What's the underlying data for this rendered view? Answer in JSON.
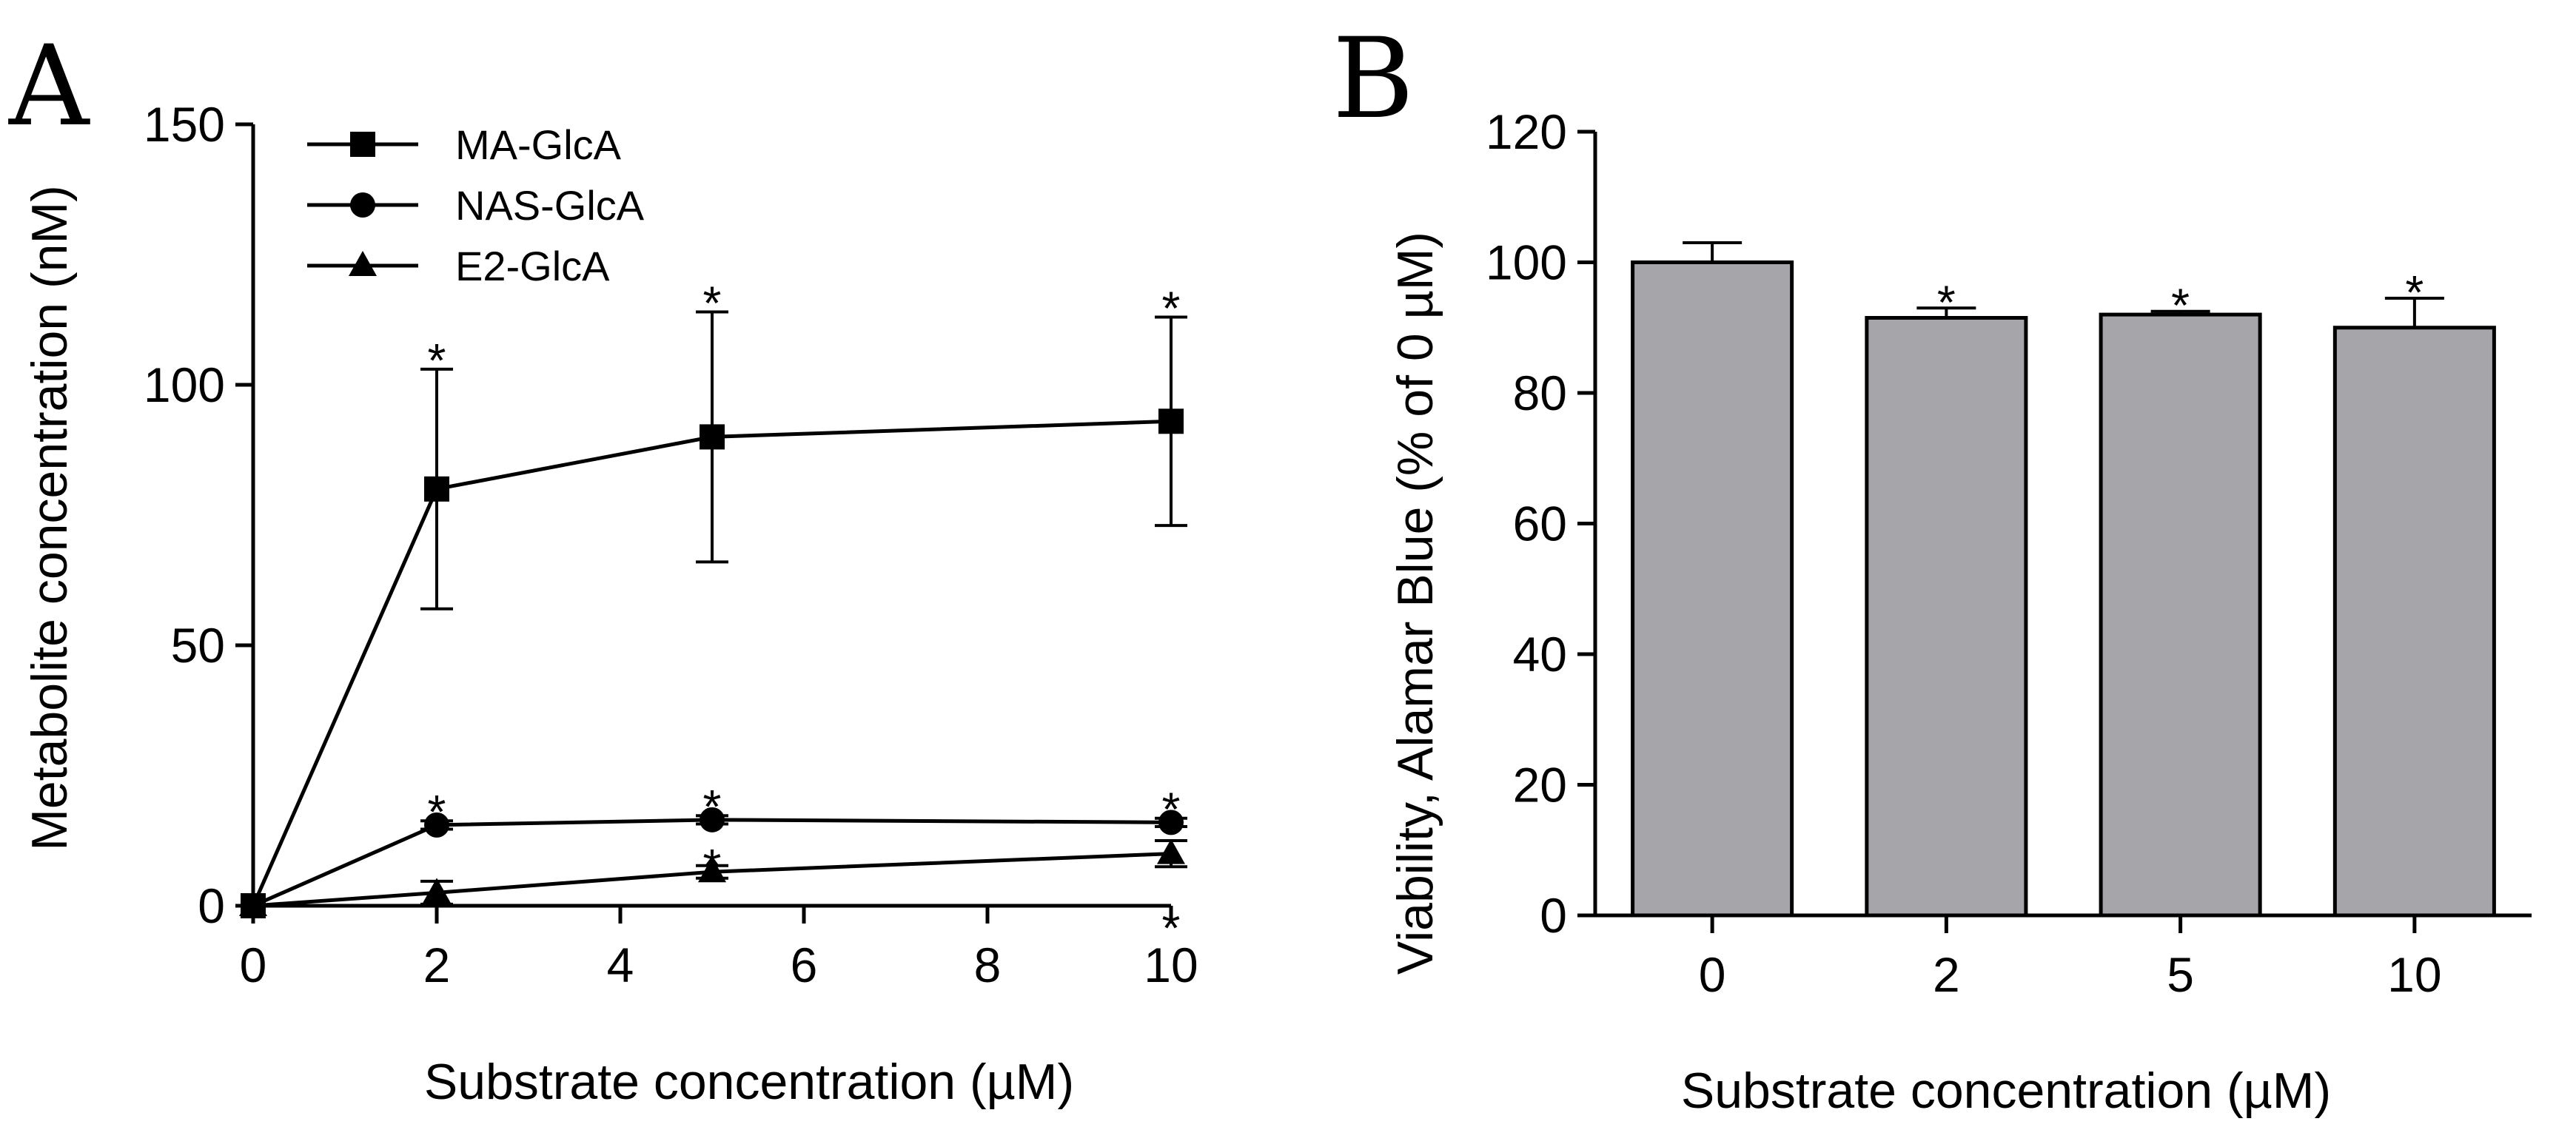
{
  "chart_data": [
    {
      "panel": "A",
      "type": "line",
      "xlabel": "Substrate concentration (µM)",
      "ylabel": "Metabolite concentration (nM)",
      "xlim": [
        0,
        10
      ],
      "ylim": [
        0,
        150
      ],
      "xticks": [
        0,
        2,
        4,
        6,
        8,
        10
      ],
      "yticks": [
        0,
        50,
        100,
        150
      ],
      "legend_position": "top-left",
      "x": [
        0,
        2,
        5,
        10
      ],
      "series": [
        {
          "name": "MA-GlcA",
          "marker": "square",
          "values": [
            0,
            80,
            90,
            93
          ],
          "errors": [
            0,
            23,
            24,
            20
          ],
          "significant": [
            false,
            true,
            true,
            true
          ]
        },
        {
          "name": "NAS-GlcA",
          "marker": "circle",
          "values": [
            0,
            15.5,
            16.5,
            16
          ],
          "errors": [
            0,
            0.8,
            0.8,
            0.8
          ],
          "significant": [
            false,
            true,
            true,
            true
          ]
        },
        {
          "name": "E2-GlcA",
          "marker": "triangle",
          "values": [
            0,
            2.5,
            6.5,
            10
          ],
          "errors": [
            0,
            2.2,
            1.2,
            2.5
          ],
          "significant": [
            false,
            false,
            true,
            true
          ]
        }
      ]
    },
    {
      "panel": "B",
      "type": "bar",
      "xlabel": "Substrate concentration (µM)",
      "ylabel": "Viability, Alamar Blue (% of 0 µM)",
      "ylim": [
        0,
        120
      ],
      "yticks": [
        0,
        20,
        40,
        60,
        80,
        100,
        120
      ],
      "categories": [
        "0",
        "2",
        "5",
        "10"
      ],
      "values": [
        100,
        91.5,
        92,
        90
      ],
      "errors": [
        3,
        1.5,
        0.5,
        4.5
      ],
      "significant": [
        false,
        true,
        true,
        true
      ],
      "bar_color": "#a6a6aa"
    }
  ],
  "significance_mark": "*",
  "colors": {
    "ink": "#000000",
    "bar_fill": "#a6a6aa",
    "background": "#ffffff"
  }
}
